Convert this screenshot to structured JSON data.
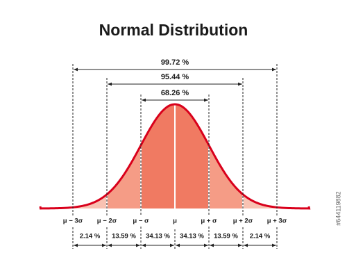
{
  "title": "Normal Distribution",
  "ranges": [
    "99.72 %",
    "95.44 %",
    "68.26 %"
  ],
  "sigma_labels": [
    "μ − 3σ",
    "μ − 2σ",
    "μ − σ",
    "μ",
    "μ + σ",
    "μ + 2σ",
    "μ + 3σ"
  ],
  "segments": [
    "2.14 %",
    "13.59 %",
    "34.13 %",
    "34.13 %",
    "13.59 %",
    "2.14 %"
  ],
  "image_id": "#644119882"
}
